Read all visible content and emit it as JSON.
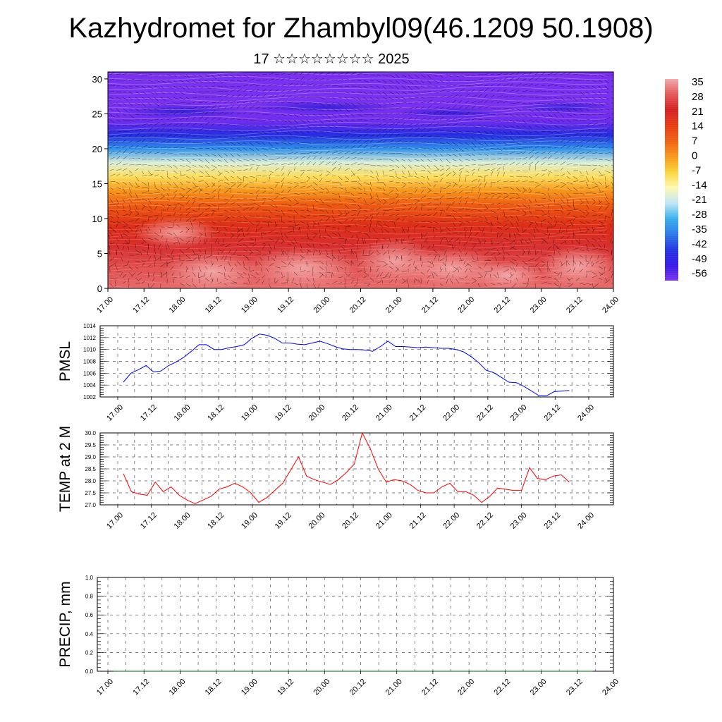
{
  "title": "Kazhydromet for Zhambyl09(46.1209 50.1908)",
  "subtitle": "17 ☆☆☆☆☆☆☆☆ 2025",
  "chart_data": [
    {
      "type": "heatmap",
      "name": "cross-section",
      "x_ticks": [
        "17.00",
        "17.12",
        "18.00",
        "18.12",
        "19.00",
        "19.12",
        "20.00",
        "20.12",
        "21.00",
        "21.12",
        "22.00",
        "22.12",
        "23.00",
        "23.12",
        "24.00"
      ],
      "y_ticks": [
        "0",
        "5",
        "10",
        "15",
        "20",
        "25",
        "30"
      ],
      "ylim": [
        0,
        31
      ],
      "colorbar": {
        "labels": [
          "35",
          "28",
          "21",
          "14",
          "7",
          "0",
          "-7",
          "-14",
          "-21",
          "-28",
          "-35",
          "-42",
          "-49",
          "-56"
        ],
        "colors": [
          "#f2a8a8",
          "#e35656",
          "#d21f1f",
          "#e63a12",
          "#f06010",
          "#f7961a",
          "#fbd43a",
          "#fff8b0",
          "#bfe6f5",
          "#37b0ec",
          "#2a78e8",
          "#2233e0",
          "#3318e6",
          "#7a30f0"
        ]
      },
      "layers": [
        {
          "height": 0,
          "temp": 30
        },
        {
          "height": 3,
          "temp": 27
        },
        {
          "height": 6,
          "temp": 23
        },
        {
          "height": 9,
          "temp": 17
        },
        {
          "height": 12,
          "temp": 8
        },
        {
          "height": 14,
          "temp": 0
        },
        {
          "height": 16,
          "temp": -9
        },
        {
          "height": 18,
          "temp": -18
        },
        {
          "height": 20,
          "temp": -32
        },
        {
          "height": 22,
          "temp": -44
        },
        {
          "height": 24,
          "temp": -55
        },
        {
          "height": 26,
          "temp": -58
        },
        {
          "height": 28,
          "temp": -59
        },
        {
          "height": 31,
          "temp": -60
        }
      ]
    },
    {
      "type": "line",
      "name": "pmsl",
      "ylabel": "PMSL",
      "ylim": [
        1002,
        1014
      ],
      "y_ticks": [
        "1002",
        "1004",
        "1006",
        "1008",
        "1010",
        "1012",
        "1014"
      ],
      "x_ticks": [
        "17.00",
        "17.12",
        "18.00",
        "18.12",
        "19.00",
        "19.12",
        "20.00",
        "20.12",
        "21.00",
        "21.12",
        "22.00",
        "22.12",
        "23.00",
        "23.12",
        "24.00"
      ],
      "color": "#0000ff",
      "values": [
        1004.5,
        1006.0,
        1006.6,
        1007.3,
        1006.2,
        1006.4,
        1007.3,
        1007.9,
        1008.7,
        1009.7,
        1010.8,
        1010.8,
        1010.0,
        1010.0,
        1010.3,
        1010.5,
        1010.8,
        1011.9,
        1012.6,
        1012.4,
        1011.9,
        1011.1,
        1011.1,
        1010.9,
        1010.8,
        1011.1,
        1011.4,
        1011.0,
        1010.5,
        1010.1,
        1010.0,
        1010.0,
        1009.9,
        1009.7,
        1010.5,
        1011.4,
        1010.5,
        1010.5,
        1010.4,
        1010.3,
        1010.4,
        1010.3,
        1010.2,
        1010.2,
        1010.0,
        1009.6,
        1008.8,
        1007.8,
        1006.5,
        1006.1,
        1005.3,
        1004.5,
        1004.4,
        1003.8,
        1003.0,
        1002.2,
        1002.2,
        1002.9,
        1003.0,
        1003.1
      ]
    },
    {
      "type": "line",
      "name": "temp2m",
      "ylabel": "TEMP at 2 M",
      "ylim": [
        27.0,
        30.0
      ],
      "y_ticks": [
        "27.0",
        "27.5",
        "28.0",
        "28.5",
        "29.0",
        "29.5",
        "30.0"
      ],
      "x_ticks": [
        "17.00",
        "17.12",
        "18.00",
        "18.12",
        "19.00",
        "19.12",
        "20.00",
        "20.12",
        "21.00",
        "21.12",
        "22.00",
        "22.12",
        "23.00",
        "23.12",
        "24.00"
      ],
      "color": "#ff0000",
      "values": [
        28.3,
        27.55,
        27.45,
        27.4,
        27.95,
        27.55,
        27.75,
        27.4,
        27.2,
        27.05,
        27.2,
        27.35,
        27.65,
        27.75,
        27.9,
        27.75,
        27.5,
        27.1,
        27.3,
        27.6,
        27.9,
        28.45,
        29.0,
        28.2,
        28.05,
        27.95,
        27.85,
        28.05,
        28.35,
        28.7,
        30.0,
        29.35,
        28.5,
        27.95,
        28.05,
        28.0,
        27.85,
        27.6,
        27.5,
        27.5,
        27.75,
        27.9,
        27.55,
        27.55,
        27.4,
        27.1,
        27.35,
        27.7,
        27.65,
        27.6,
        27.6,
        28.55,
        28.1,
        28.05,
        28.2,
        28.25,
        27.95
      ]
    },
    {
      "type": "line",
      "name": "precip",
      "ylabel": "PRECIP, mm",
      "ylim": [
        0.0,
        1.0
      ],
      "y_ticks": [
        "0.0",
        "0.2",
        "0.4",
        "0.6",
        "0.8",
        "1.0"
      ],
      "x_ticks": [
        "17.00",
        "17.12",
        "18.00",
        "18.12",
        "19.00",
        "19.12",
        "20.00",
        "20.12",
        "21.00",
        "21.12",
        "22.00",
        "22.12",
        "23.00",
        "23.12",
        "24.00"
      ],
      "color": "#006400",
      "values": [
        0,
        0,
        0,
        0,
        0,
        0,
        0,
        0,
        0,
        0,
        0,
        0,
        0,
        0,
        0,
        0,
        0,
        0,
        0,
        0,
        0,
        0,
        0,
        0,
        0,
        0,
        0,
        0,
        0,
        0,
        0,
        0,
        0,
        0,
        0,
        0,
        0,
        0,
        0,
        0,
        0,
        0,
        0,
        0,
        0,
        0,
        0,
        0,
        0,
        0,
        0,
        0,
        0,
        0,
        0,
        0,
        0,
        0,
        0
      ]
    }
  ]
}
